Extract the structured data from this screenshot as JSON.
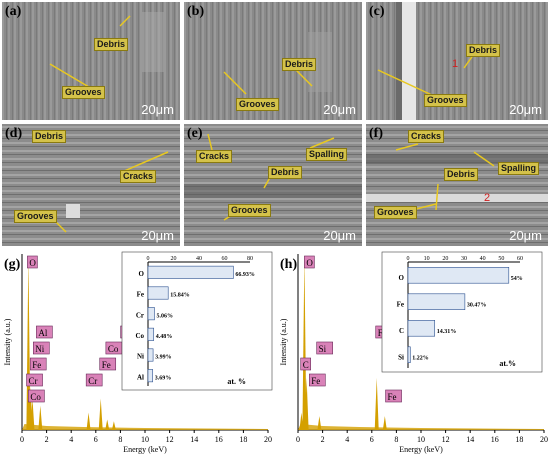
{
  "micrographs": [
    {
      "label": "(a)",
      "scale": "20μm",
      "annotations": [
        "Debris",
        "Grooves"
      ]
    },
    {
      "label": "(b)",
      "scale": "20μm",
      "annotations": [
        "Debris",
        "Grooves"
      ]
    },
    {
      "label": "(c)",
      "scale": "",
      "annotations": [
        "Debris",
        "Grooves"
      ],
      "spot": "1"
    },
    {
      "label": "(d)",
      "scale": "20μm",
      "annotations": [
        "Debris",
        "Cracks",
        "Grooves"
      ]
    },
    {
      "label": "(e)",
      "scale": "20μm",
      "annotations": [
        "Cracks",
        "Spalling",
        "Debris",
        "Grooves"
      ]
    },
    {
      "label": "(f)",
      "scale": "20μm",
      "annotations": [
        "Cracks",
        "Debris",
        "Spalling",
        "Grooves"
      ],
      "spot": "2"
    }
  ],
  "colors": {
    "spectrum": "#d4a000",
    "peak_label_bg": "#d982b8",
    "bar_fill": "#dfe8f4",
    "bar_stroke": "#2a4f8f"
  },
  "chart_data": [
    {
      "type": "line",
      "panel_label": "(g)",
      "title": "",
      "xlabel": "Energy (keV)",
      "ylabel": "Intensity (a.u.)",
      "xlim": [
        0,
        20
      ],
      "x_ticks": [
        0,
        2,
        4,
        6,
        8,
        10,
        12,
        14,
        16,
        18,
        20
      ],
      "peaks": [
        {
          "element": "O",
          "energy": 0.52,
          "intensity": 1.0
        },
        {
          "element": "Cr",
          "energy": 0.57,
          "intensity": 0.3
        },
        {
          "element": "Fe",
          "energy": 0.7,
          "intensity": 0.25
        },
        {
          "element": "Ni",
          "energy": 0.85,
          "intensity": 0.18
        },
        {
          "element": "Co",
          "energy": 0.78,
          "intensity": 0.12
        },
        {
          "element": "Al",
          "energy": 1.49,
          "intensity": 0.14
        },
        {
          "element": "Cr",
          "energy": 5.41,
          "intensity": 0.1
        },
        {
          "element": "Fe",
          "energy": 6.4,
          "intensity": 0.18
        },
        {
          "element": "Co",
          "energy": 6.93,
          "intensity": 0.06
        },
        {
          "element": "Ni",
          "energy": 7.47,
          "intensity": 0.05
        }
      ],
      "peak_tags": [
        {
          "text": "O",
          "energy": 0.52
        },
        {
          "text": "Cr",
          "energy": 0.45
        },
        {
          "text": "Fe",
          "energy": 0.75
        },
        {
          "text": "Ni",
          "energy": 1.0
        },
        {
          "text": "Al",
          "energy": 1.25
        },
        {
          "text": "Co",
          "energy": 0.6
        },
        {
          "text": "Cr",
          "energy": 5.3
        },
        {
          "text": "Fe",
          "energy": 6.4
        },
        {
          "text": "Co",
          "energy": 6.9
        },
        {
          "text": "Ni",
          "energy": 8.1
        }
      ],
      "inset": {
        "type": "bar",
        "orientation": "horizontal",
        "unit": "at. %",
        "xlim": [
          0,
          80
        ],
        "x_ticks": [
          0,
          20,
          40,
          60,
          80
        ],
        "categories": [
          "O",
          "Fe",
          "Cr",
          "Co",
          "Ni",
          "Al"
        ],
        "values": [
          66.93,
          15.84,
          5.06,
          4.48,
          3.99,
          3.69
        ],
        "labels": [
          "66.93%",
          "15.84%",
          "5.06%",
          "4.48%",
          "3.99%",
          "3.69%"
        ]
      }
    },
    {
      "type": "line",
      "panel_label": "(h)",
      "title": "",
      "xlabel": "Energy (keV)",
      "ylabel": "Intensity (a.u.)",
      "xlim": [
        0,
        20
      ],
      "x_ticks": [
        0,
        2,
        4,
        6,
        8,
        10,
        12,
        14,
        16,
        18,
        20
      ],
      "peaks": [
        {
          "element": "O",
          "energy": 0.52,
          "intensity": 1.0
        },
        {
          "element": "Fe",
          "energy": 0.7,
          "intensity": 0.3
        },
        {
          "element": "C",
          "energy": 0.28,
          "intensity": 0.1
        },
        {
          "element": "Si",
          "energy": 1.74,
          "intensity": 0.08
        },
        {
          "element": "Fe",
          "energy": 6.4,
          "intensity": 0.3
        },
        {
          "element": "Fe",
          "energy": 7.06,
          "intensity": 0.08
        }
      ],
      "peak_tags": [
        {
          "text": "O",
          "energy": 0.6
        },
        {
          "text": "Fe",
          "energy": 1.0
        },
        {
          "text": "C",
          "energy": 0.3
        },
        {
          "text": "Si",
          "energy": 1.6
        },
        {
          "text": "Fe",
          "energy": 6.4
        },
        {
          "text": "Fe",
          "energy": 7.2
        }
      ],
      "inset": {
        "type": "bar",
        "orientation": "horizontal",
        "unit": "at.%",
        "xlim": [
          0,
          60
        ],
        "x_ticks": [
          0,
          10,
          20,
          30,
          40,
          50,
          60
        ],
        "categories": [
          "O",
          "Fe",
          "C",
          "Si"
        ],
        "values": [
          54,
          30.47,
          14.31,
          1.22
        ],
        "labels": [
          "54%",
          "30.47%",
          "14.31%",
          "1.22%"
        ]
      }
    }
  ]
}
